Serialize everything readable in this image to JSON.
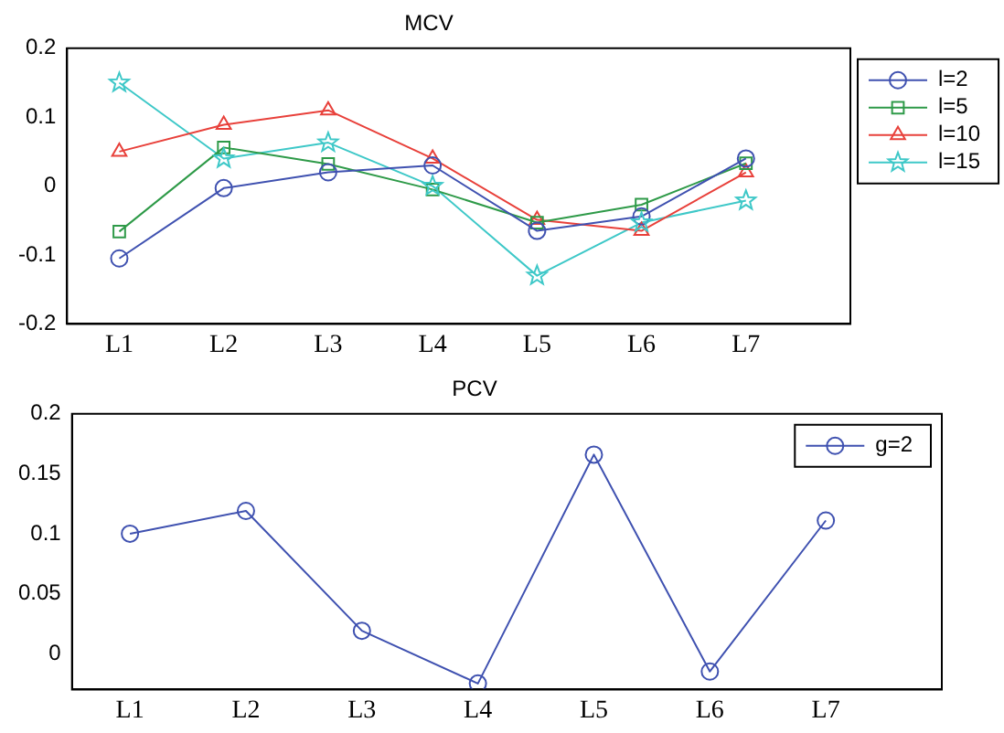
{
  "chart_data": [
    {
      "type": "line",
      "title": "MCV",
      "categories": [
        "L1",
        "L2",
        "L3",
        "L4",
        "L5",
        "L6",
        "L7"
      ],
      "series": [
        {
          "name": "l=2",
          "color": "#3f51b0",
          "marker": "circle",
          "values": [
            -0.105,
            -0.003,
            0.02,
            0.03,
            -0.065,
            -0.044,
            0.04
          ]
        },
        {
          "name": "l=5",
          "color": "#2e9a48",
          "marker": "square",
          "values": [
            -0.066,
            0.056,
            0.032,
            -0.005,
            -0.053,
            -0.027,
            0.033
          ]
        },
        {
          "name": "l=10",
          "color": "#e8403a",
          "marker": "triangle",
          "values": [
            0.05,
            0.089,
            0.11,
            0.04,
            -0.049,
            -0.065,
            0.02
          ]
        },
        {
          "name": "l=15",
          "color": "#3ec8c8",
          "marker": "star",
          "values": [
            0.15,
            0.04,
            0.063,
            0,
            -0.13,
            -0.053,
            -0.021
          ]
        }
      ],
      "ylim": [
        -0.2,
        0.2
      ],
      "yticks": [
        -0.2,
        -0.1,
        0,
        0.1,
        0.2
      ],
      "legend": "right",
      "grid": false
    },
    {
      "type": "line",
      "title": "PCV",
      "categories": [
        "L1",
        "L2",
        "L3",
        "L4",
        "L5",
        "L6",
        "L7"
      ],
      "series": [
        {
          "name": "g=2",
          "color": "#3f51b0",
          "marker": "circle",
          "values": [
            0.1,
            0.119,
            0.019,
            -0.025,
            0.166,
            -0.015,
            0.111
          ]
        }
      ],
      "ylim": [
        -0.03,
        0.2
      ],
      "yticks": [
        0,
        0.05,
        0.1,
        0.15,
        0.2
      ],
      "legend": "top right",
      "grid": false
    }
  ]
}
